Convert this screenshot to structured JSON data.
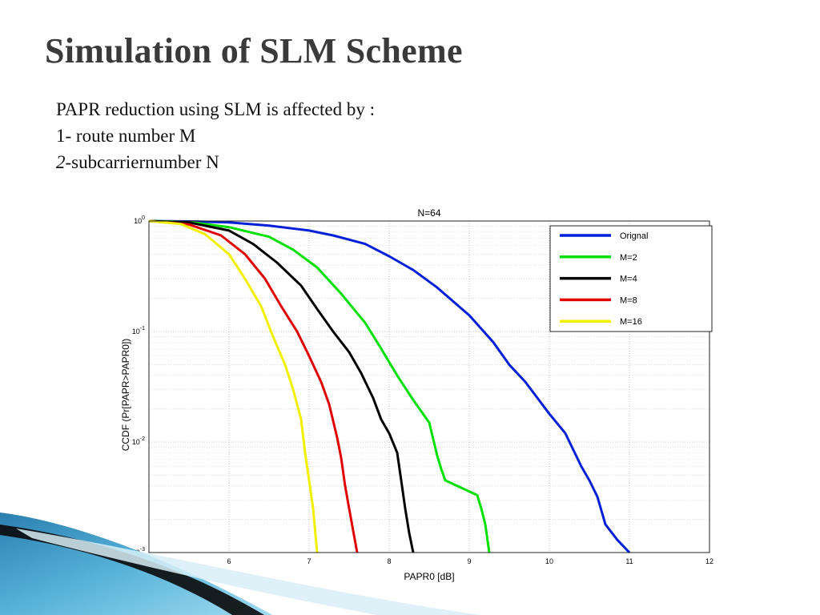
{
  "slide": {
    "title": "Simulation of SLM Scheme",
    "bullets": [
      {
        "prefix": "",
        "text": "PAPR reduction using SLM is affected by :"
      },
      {
        "prefix": "1",
        "text": "- route number M"
      },
      {
        "prefix": "2",
        "text": "-subcarriernumber N"
      }
    ]
  },
  "chart_data": {
    "type": "line",
    "title": "N=64",
    "xlabel": "PAPR0 [dB]",
    "ylabel": "CCDF (Pr[PAPR>PAPR0])",
    "xlim": [
      5,
      12
    ],
    "ylim": [
      0.001,
      1
    ],
    "yscale": "log",
    "grid": true,
    "legend_position": "top-right",
    "x_ticks": [
      "6",
      "7",
      "8",
      "9",
      "10",
      "11",
      "12"
    ],
    "y_ticks": [
      {
        "base": "10",
        "exp": "0"
      },
      {
        "base": "10",
        "exp": "-1"
      },
      {
        "base": "10",
        "exp": "-2"
      },
      {
        "base": "10",
        "exp": "-3"
      }
    ],
    "series": [
      {
        "name": "Orignal",
        "color": "#0020d8",
        "points": [
          [
            5.0,
            1.0
          ],
          [
            5.6,
            0.99
          ],
          [
            6.0,
            0.97
          ],
          [
            6.5,
            0.91
          ],
          [
            7.0,
            0.82
          ],
          [
            7.3,
            0.74
          ],
          [
            7.7,
            0.62
          ],
          [
            8.0,
            0.48
          ],
          [
            8.3,
            0.36
          ],
          [
            8.6,
            0.25
          ],
          [
            9.0,
            0.14
          ],
          [
            9.3,
            0.08
          ],
          [
            9.5,
            0.05
          ],
          [
            9.7,
            0.035
          ],
          [
            10.0,
            0.018
          ],
          [
            10.2,
            0.012
          ],
          [
            10.4,
            0.006
          ],
          [
            10.5,
            0.0045
          ],
          [
            10.6,
            0.0032
          ],
          [
            10.7,
            0.0018
          ],
          [
            10.85,
            0.0013
          ],
          [
            11.0,
            0.001
          ]
        ]
      },
      {
        "name": "M=2",
        "color": "#00e000",
        "points": [
          [
            5.0,
            1.0
          ],
          [
            5.5,
            0.98
          ],
          [
            6.0,
            0.88
          ],
          [
            6.5,
            0.72
          ],
          [
            6.8,
            0.55
          ],
          [
            7.1,
            0.38
          ],
          [
            7.4,
            0.22
          ],
          [
            7.7,
            0.12
          ],
          [
            7.9,
            0.07
          ],
          [
            8.1,
            0.04
          ],
          [
            8.3,
            0.024
          ],
          [
            8.5,
            0.015
          ],
          [
            8.6,
            0.0075
          ],
          [
            8.65,
            0.0057
          ],
          [
            8.7,
            0.0045
          ],
          [
            9.1,
            0.0033
          ],
          [
            9.15,
            0.0025
          ],
          [
            9.2,
            0.0018
          ],
          [
            9.25,
            0.001
          ]
        ]
      },
      {
        "name": "M=4",
        "color": "#000000",
        "points": [
          [
            5.0,
            1.0
          ],
          [
            5.5,
            0.97
          ],
          [
            6.0,
            0.82
          ],
          [
            6.3,
            0.62
          ],
          [
            6.6,
            0.42
          ],
          [
            6.9,
            0.26
          ],
          [
            7.1,
            0.16
          ],
          [
            7.3,
            0.1
          ],
          [
            7.5,
            0.065
          ],
          [
            7.65,
            0.042
          ],
          [
            7.8,
            0.025
          ],
          [
            7.9,
            0.016
          ],
          [
            8.0,
            0.012
          ],
          [
            8.1,
            0.008
          ],
          [
            8.15,
            0.0045
          ],
          [
            8.2,
            0.0025
          ],
          [
            8.25,
            0.0015
          ],
          [
            8.3,
            0.001
          ]
        ]
      },
      {
        "name": "M=8",
        "color": "#e00000",
        "points": [
          [
            5.0,
            1.0
          ],
          [
            5.5,
            0.93
          ],
          [
            5.9,
            0.74
          ],
          [
            6.2,
            0.5
          ],
          [
            6.45,
            0.3
          ],
          [
            6.65,
            0.17
          ],
          [
            6.85,
            0.1
          ],
          [
            7.0,
            0.06
          ],
          [
            7.15,
            0.035
          ],
          [
            7.25,
            0.022
          ],
          [
            7.35,
            0.011
          ],
          [
            7.4,
            0.0072
          ],
          [
            7.45,
            0.004
          ],
          [
            7.5,
            0.0025
          ],
          [
            7.6,
            0.001
          ]
        ]
      },
      {
        "name": "M=16",
        "color": "#f0f000",
        "points": [
          [
            5.0,
            1.0
          ],
          [
            5.4,
            0.94
          ],
          [
            5.7,
            0.76
          ],
          [
            6.0,
            0.5
          ],
          [
            6.2,
            0.3
          ],
          [
            6.4,
            0.17
          ],
          [
            6.55,
            0.09
          ],
          [
            6.7,
            0.05
          ],
          [
            6.8,
            0.03
          ],
          [
            6.9,
            0.016
          ],
          [
            6.95,
            0.008
          ],
          [
            7.0,
            0.0045
          ],
          [
            7.05,
            0.0025
          ],
          [
            7.1,
            0.001
          ]
        ]
      }
    ]
  }
}
